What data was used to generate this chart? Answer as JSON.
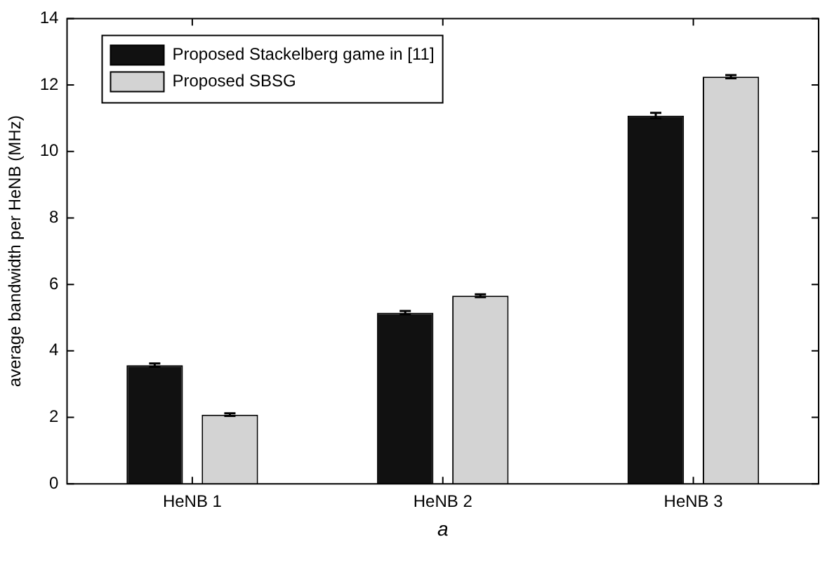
{
  "chart_data": {
    "type": "bar",
    "categories": [
      "HeNB 1",
      "HeNB 2",
      "HeNB 3"
    ],
    "series": [
      {
        "name": "Proposed Stackelberg game in [11]",
        "color": "#111111",
        "values": [
          3.57,
          5.15,
          11.08
        ],
        "errors": [
          0.05,
          0.05,
          0.08
        ]
      },
      {
        "name": "Proposed SBSG",
        "color": "#d3d3d3",
        "values": [
          2.08,
          5.66,
          12.25
        ],
        "errors": [
          0.04,
          0.04,
          0.05
        ]
      }
    ],
    "ylabel": "average bandwidth per HeNB (MHz)",
    "ylim": [
      0,
      14
    ],
    "yticks": [
      0,
      2,
      4,
      6,
      8,
      10,
      12,
      14
    ],
    "grid": false,
    "legend": "top left",
    "annotations": [
      "a"
    ]
  }
}
